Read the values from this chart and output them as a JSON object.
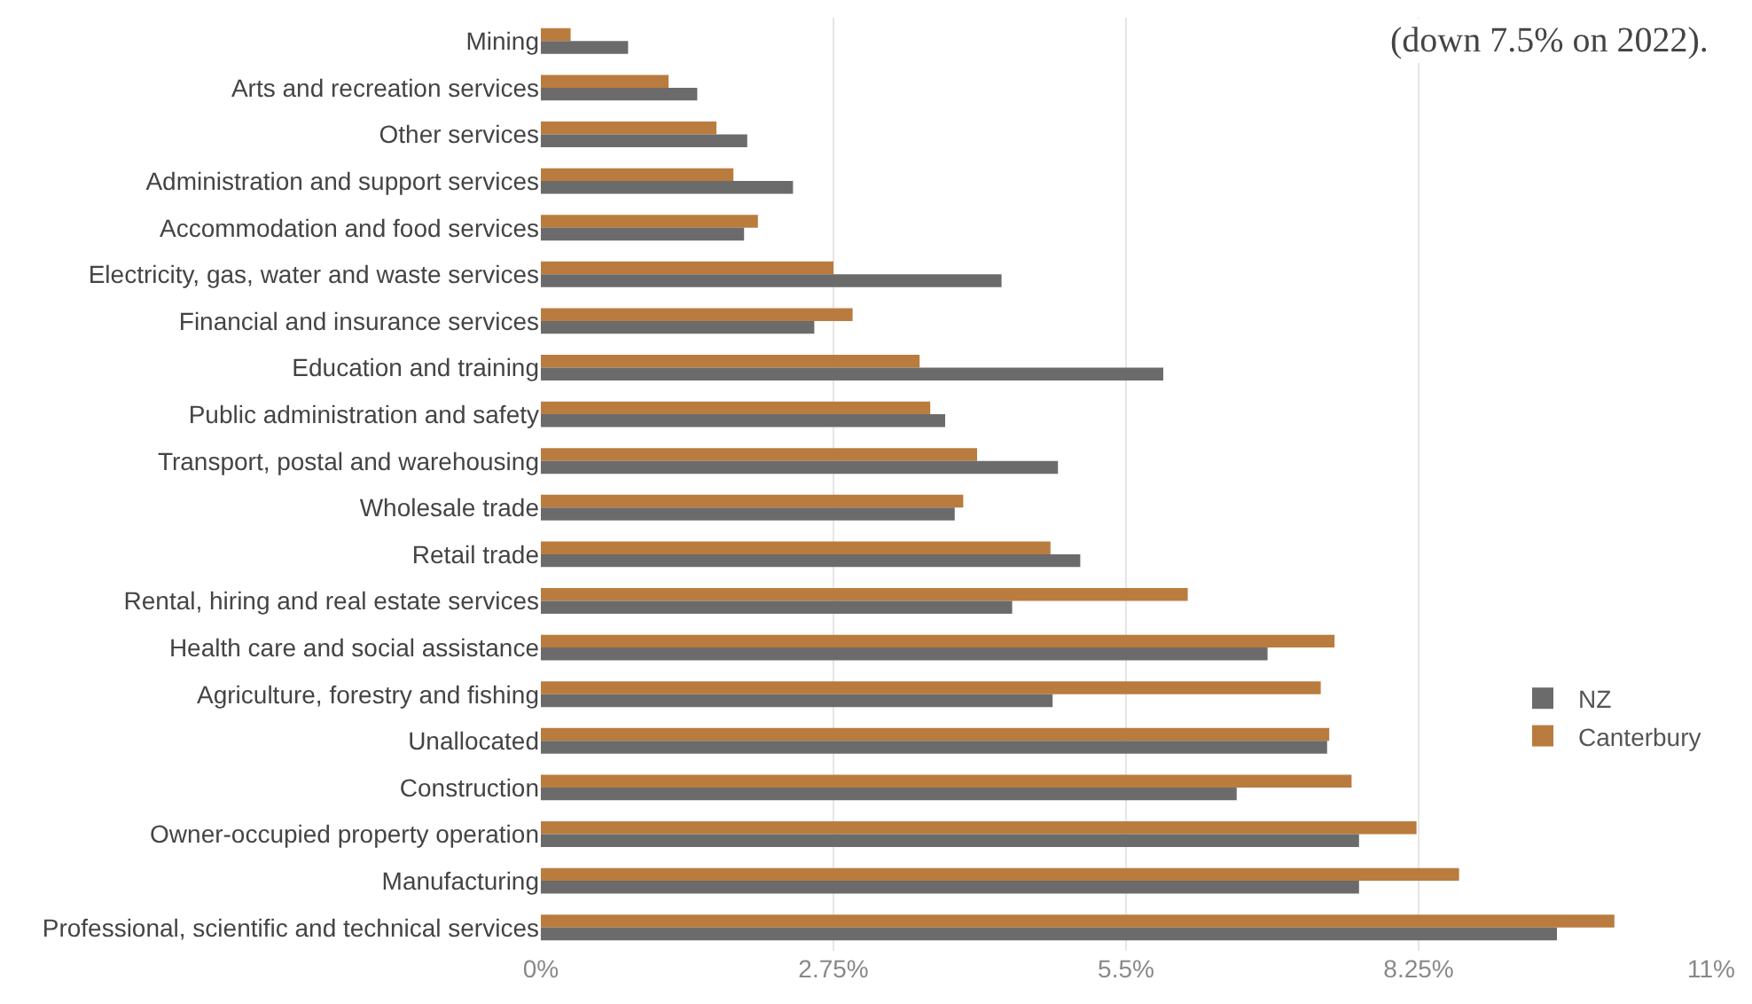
{
  "chart_data": {
    "type": "bar",
    "orientation": "horizontal",
    "categories": [
      "Mining",
      "Arts and recreation services",
      "Other services",
      "Administration and support services",
      "Accommodation and food services",
      "Electricity, gas, water and waste services",
      "Financial and insurance services",
      "Education and training",
      "Public administration and safety",
      "Transport, postal and warehousing",
      "Wholesale trade",
      "Retail trade",
      "Rental, hiring and real estate services",
      "Health care and social assistance",
      "Agriculture, forestry and fishing",
      "Unallocated",
      "Construction",
      "Owner-occupied property operation",
      "Manufacturing",
      "Professional, scientific and technical services"
    ],
    "series": [
      {
        "name": "Canterbury",
        "color": "#b97c3e",
        "values": [
          0.28,
          1.2,
          1.65,
          1.81,
          2.04,
          2.75,
          2.93,
          3.56,
          3.66,
          4.1,
          3.97,
          4.79,
          6.08,
          7.46,
          7.33,
          7.41,
          7.62,
          8.23,
          8.63,
          10.09
        ]
      },
      {
        "name": "NZ",
        "color": "#6b6b6b",
        "values": [
          0.82,
          1.47,
          1.94,
          2.37,
          1.91,
          4.33,
          2.57,
          5.85,
          3.8,
          4.86,
          3.89,
          5.07,
          4.43,
          6.83,
          4.81,
          7.39,
          6.54,
          7.69,
          7.69,
          9.55
        ]
      }
    ],
    "xlim": [
      0,
      11
    ],
    "xticks": [
      {
        "value": 0,
        "label": "0%"
      },
      {
        "value": 2.75,
        "label": "2.75%"
      },
      {
        "value": 5.5,
        "label": "5.5%"
      },
      {
        "value": 8.25,
        "label": "8.25%"
      },
      {
        "value": 11,
        "label": "11%"
      }
    ],
    "grid": "x",
    "legend": "right",
    "annotations": [
      "(down 7.5% on 2022)."
    ]
  }
}
